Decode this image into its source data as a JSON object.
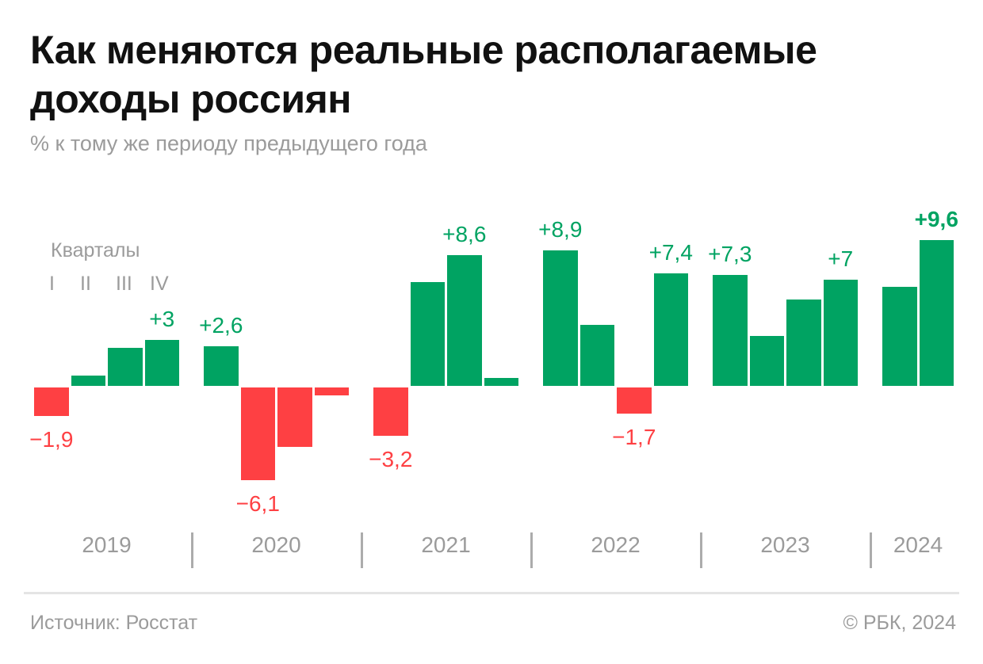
{
  "page": {
    "title_lines": [
      "Как меняются реальные располагаемые",
      "доходы россиян"
    ],
    "subtitle": "% к тому же периоду предыдущего года",
    "footer": {
      "source": "Источник: Росстат",
      "copyright": "© РБК, 2024"
    }
  },
  "legend": {
    "title": "Кварталы",
    "items": [
      "I",
      "II",
      "III",
      "IV"
    ]
  },
  "colors": {
    "positive": "#00A362",
    "negative": "#FE4043",
    "gray_text": "#9B9B9B",
    "divider": "#ACACAC",
    "rule": "#E4E4E4",
    "title_text": "#111111"
  },
  "chart_data": {
    "type": "bar",
    "title": "Как меняются реальные располагаемые доходы россиян",
    "subtitle": "% к тому же периоду предыдущего года",
    "unit": "%",
    "baseline": 0,
    "ylim": [
      -7,
      10
    ],
    "legend_note": "Кварталы I, II, III, IV",
    "bold_labels": [
      "+9,6"
    ],
    "groups": [
      {
        "year": "2019",
        "values": [
          -1.9,
          0.7,
          2.5,
          3.0
        ],
        "labels": [
          "−1,9",
          null,
          null,
          "+3"
        ]
      },
      {
        "year": "2020",
        "values": [
          2.6,
          -6.1,
          -3.9,
          -0.5
        ],
        "labels": [
          "+2,6",
          "−6,1",
          null,
          null
        ]
      },
      {
        "year": "2021",
        "values": [
          -3.2,
          6.8,
          8.6,
          0.5
        ],
        "labels": [
          "−3,2",
          null,
          "+8,6",
          null
        ]
      },
      {
        "year": "2022",
        "values": [
          8.9,
          4.0,
          -1.7,
          7.4
        ],
        "labels": [
          "+8,9",
          null,
          "−1,7",
          "+7,4"
        ]
      },
      {
        "year": "2023",
        "values": [
          7.3,
          3.3,
          5.7,
          7.0
        ],
        "labels": [
          "+7,3",
          null,
          null,
          "+7"
        ]
      },
      {
        "year": "2024",
        "values": [
          6.5,
          9.6
        ],
        "labels": [
          null,
          "+9,6"
        ]
      }
    ],
    "note": "unlabeled bar values estimated from pixel heights"
  }
}
